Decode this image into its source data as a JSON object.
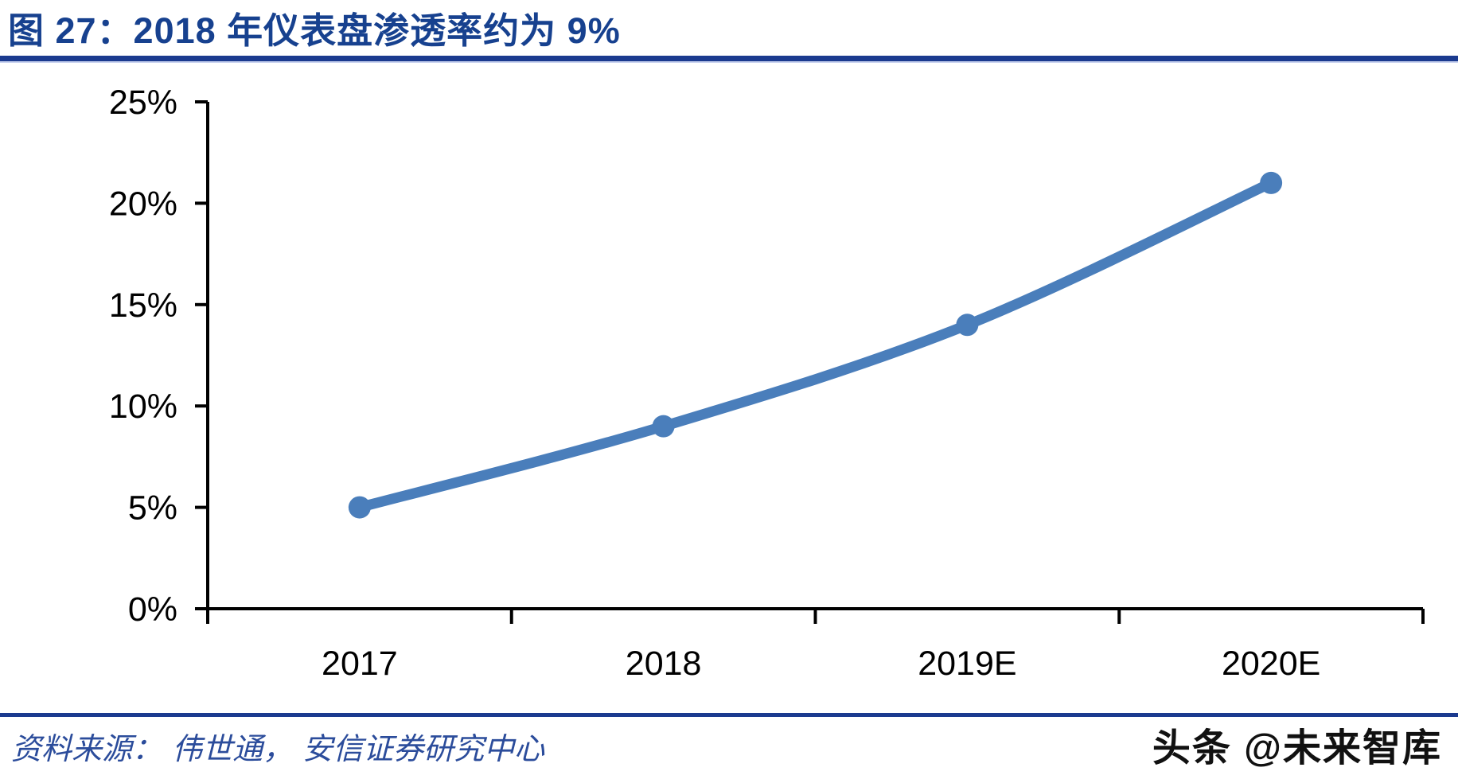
{
  "title": "图 27：2018 年仪表盘渗透率约为 9%",
  "chart_data": {
    "type": "line",
    "title": "2018 年仪表盘渗透率约为 9%",
    "categories": [
      "2017",
      "2018",
      "2019E",
      "2020E"
    ],
    "series": [
      {
        "name": "仪表盘渗透率",
        "values": [
          5,
          9,
          14,
          21
        ]
      }
    ],
    "unit": "%",
    "xlabel": "",
    "ylabel": "",
    "ylim": [
      0,
      25
    ],
    "ytick_step": 5,
    "ytick_labels": [
      "0%",
      "5%",
      "10%",
      "15%",
      "20%",
      "25%"
    ],
    "grid": false,
    "legend_position": "none",
    "marker": "circle",
    "smooth": true
  },
  "footer": {
    "source": "资料来源： 伟世通， 安信证券研究中心",
    "watermark": "头条 @未来智库"
  },
  "colors": {
    "title_text": "#17418F",
    "divider": "#1B3A8F",
    "axis": "#000000",
    "tick_label": "#000000",
    "line": "#4A7EBB",
    "marker_fill": "#4A7EBB",
    "source_text": "#2B4C9B",
    "watermark_text": "#111111",
    "background": "#ffffff"
  }
}
